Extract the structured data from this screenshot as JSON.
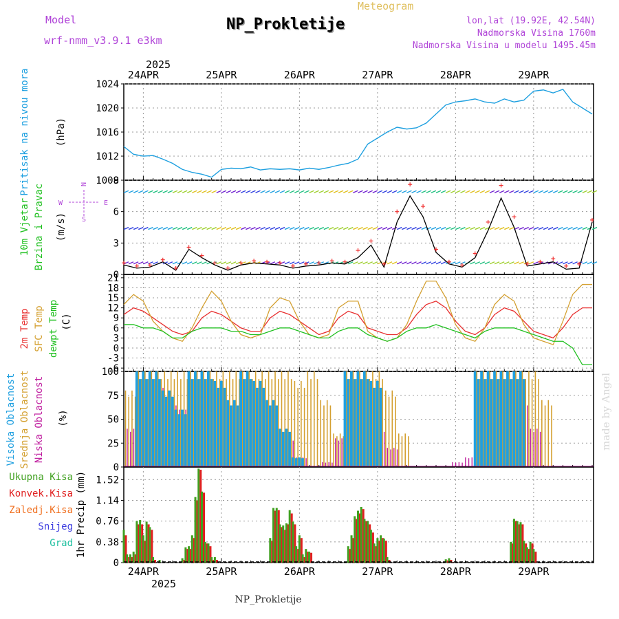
{
  "header": {
    "model_label": "Model",
    "model_name": "wrf-nmm_v3.9.1 e3km",
    "meteogram_label": "Meteogram",
    "station_title": "NP_Prokletije",
    "coords": "lon,lat (19.92E, 42.54N)",
    "elevation": "Nadmorska Visina 1760m",
    "model_elevation": "Nadmorska Visina u modelu 1495.45m",
    "watermark": "made by Angel",
    "footer_station": "NP_Prokletije"
  },
  "colors": {
    "model": "#b044d8",
    "meteogram": "#e0c060",
    "pressure": "#1ea0e0",
    "temp2m": "#e83030",
    "sfc": "#d4a030",
    "dewpt": "#20c020",
    "high_cloud": "#20a0e0",
    "mid_cloud": "#d4a030",
    "low_cloud": "#c020a0",
    "precip_total": "#40a020",
    "precip_conv": "#e02020"
  },
  "time_axis": {
    "year": "2025",
    "days": [
      "24APR",
      "25APR",
      "26APR",
      "27APR",
      "28APR",
      "29APR"
    ],
    "start_hour_offset": -6,
    "total_hours": 144
  },
  "chart_data": [
    {
      "type": "line",
      "panel": "pressure",
      "ylabel": "Pritisak na nivou mora",
      "unit": "(hPa)",
      "ylim": [
        1008,
        1024
      ],
      "yticks": [
        1008,
        1012,
        1016,
        1020,
        1024
      ],
      "x_hours": [
        0,
        3,
        6,
        9,
        12,
        15,
        18,
        21,
        24,
        27,
        30,
        33,
        36,
        39,
        42,
        45,
        48,
        51,
        54,
        57,
        60,
        63,
        66,
        69,
        72,
        75,
        78,
        81,
        84,
        87,
        90,
        93,
        96,
        99,
        102,
        105,
        108,
        111,
        114,
        117,
        120,
        123,
        126,
        129,
        132,
        135,
        138,
        141,
        144
      ],
      "values": [
        1013.6,
        1012.3,
        1012.0,
        1012.1,
        1011.5,
        1010.8,
        1009.8,
        1009.3,
        1009.0,
        1008.5,
        1009.8,
        1010.0,
        1009.9,
        1010.2,
        1009.7,
        1009.9,
        1009.8,
        1009.9,
        1009.7,
        1010.0,
        1009.8,
        1010.1,
        1010.5,
        1010.8,
        1011.5,
        1014.0,
        1015.0,
        1016.0,
        1016.8,
        1016.5,
        1016.7,
        1017.5,
        1019.0,
        1020.5,
        1021.0,
        1021.2,
        1021.5,
        1021.0,
        1020.8,
        1021.5,
        1021.0,
        1021.3,
        1022.8,
        1023.0,
        1022.5,
        1023.1,
        1021.0,
        1020.0,
        1019.0
      ]
    },
    {
      "type": "line",
      "panel": "wind",
      "ylabel": "10m Vjetar Brzina i Pravac",
      "unit": "(m/s)",
      "compass": [
        "N",
        "S",
        "W",
        "E"
      ],
      "ylim": [
        0,
        9
      ],
      "yticks": [
        0,
        3,
        6,
        9
      ],
      "x_hours": [
        0,
        4,
        8,
        12,
        16,
        20,
        24,
        28,
        32,
        36,
        40,
        44,
        48,
        52,
        56,
        60,
        64,
        68,
        72,
        76,
        80,
        84,
        88,
        92,
        96,
        100,
        104,
        108,
        112,
        116,
        120,
        124,
        128,
        132,
        136,
        140,
        144
      ],
      "series": [
        {
          "name": "Wind speed",
          "values": [
            0.9,
            0.6,
            0.7,
            1.2,
            0.4,
            2.4,
            1.6,
            0.9,
            0.4,
            0.9,
            1.1,
            1.0,
            0.9,
            0.6,
            0.8,
            0.9,
            1.1,
            1.0,
            1.6,
            2.8,
            0.7,
            5.0,
            7.5,
            5.5,
            2.1,
            1.0,
            0.7,
            1.6,
            4.2,
            7.3,
            4.5,
            0.8,
            1.0,
            1.2,
            0.5,
            0.6,
            5.0
          ]
        },
        {
          "name": "Gust",
          "values": [
            1.1,
            0.8,
            0.9,
            1.4,
            0.6,
            2.6,
            1.8,
            1.1,
            0.6,
            1.1,
            1.3,
            1.2,
            1.1,
            0.8,
            1.0,
            1.1,
            1.3,
            1.2,
            2.3,
            3.2,
            1.0,
            6.0,
            8.6,
            6.5,
            2.4,
            1.2,
            0.9,
            2.0,
            5.0,
            8.5,
            5.5,
            1.0,
            1.2,
            1.5,
            0.8,
            1.0,
            5.2
          ]
        }
      ]
    },
    {
      "type": "line",
      "panel": "temperature",
      "ylabels": [
        "2m Temp",
        "SFC Temp",
        "dewpt Temp"
      ],
      "unit": "(C)",
      "ylim": [
        -7,
        22
      ],
      "yticks": [
        -6,
        -3,
        0,
        3,
        6,
        9,
        12,
        15,
        18,
        21
      ],
      "x_hours": [
        0,
        3,
        6,
        9,
        12,
        15,
        18,
        21,
        24,
        27,
        30,
        33,
        36,
        39,
        42,
        45,
        48,
        51,
        54,
        57,
        60,
        63,
        66,
        69,
        72,
        75,
        78,
        81,
        84,
        87,
        90,
        93,
        96,
        99,
        102,
        105,
        108,
        111,
        114,
        117,
        120,
        123,
        126,
        129,
        132,
        135,
        138,
        141,
        144
      ],
      "series": [
        {
          "name": "2m Temp",
          "values": [
            10,
            12,
            11,
            9,
            7,
            5,
            4,
            5,
            9,
            11,
            10,
            8,
            6,
            5,
            5,
            9,
            11,
            10,
            8,
            6,
            4,
            5,
            9,
            11,
            10,
            6,
            5,
            4,
            4,
            6,
            10,
            13,
            14,
            12,
            8,
            5,
            4,
            6,
            10,
            12,
            11,
            8,
            5,
            4,
            3,
            6,
            10,
            12,
            12
          ]
        },
        {
          "name": "SFC Temp",
          "values": [
            13,
            16,
            14,
            8,
            5,
            3,
            2,
            6,
            12,
            17,
            14,
            8,
            4,
            3,
            4,
            12,
            15,
            14,
            8,
            4,
            3,
            4,
            12,
            14,
            14,
            5,
            3,
            2,
            3,
            7,
            14,
            20,
            20,
            15,
            7,
            3,
            2,
            6,
            13,
            16,
            14,
            7,
            3,
            2,
            1,
            8,
            16,
            19,
            19
          ]
        },
        {
          "name": "dewpt Temp",
          "values": [
            7,
            7,
            6,
            6,
            5,
            3,
            3,
            5,
            6,
            6,
            6,
            5,
            5,
            4,
            4,
            5,
            6,
            6,
            5,
            4,
            3,
            3,
            5,
            6,
            6,
            4,
            3,
            2,
            3,
            5,
            6,
            6,
            7,
            6,
            5,
            4,
            3,
            5,
            6,
            6,
            6,
            5,
            4,
            3,
            2,
            2,
            0,
            -5,
            -5
          ]
        }
      ]
    },
    {
      "type": "bar",
      "panel": "cloud",
      "ylabels": [
        "Visoka Oblacnost",
        "Srednja Oblacnost",
        "Niska Oblacnost"
      ],
      "unit": "(%)",
      "ylim": [
        0,
        100
      ],
      "yticks": [
        0,
        25,
        50,
        75,
        100
      ],
      "x_hours": [
        0,
        4,
        8,
        12,
        16,
        20,
        24,
        28,
        32,
        36,
        40,
        44,
        48,
        52,
        56,
        60,
        64,
        68,
        72,
        76,
        80,
        84,
        88,
        92,
        96,
        100,
        104,
        108,
        112,
        116,
        120,
        124,
        128,
        132,
        136,
        140
      ],
      "series": [
        {
          "name": "Visoka Oblacnost",
          "values": [
            0,
            100,
            100,
            80,
            60,
            100,
            100,
            90,
            70,
            100,
            90,
            70,
            40,
            10,
            0,
            0,
            0,
            100,
            100,
            90,
            0,
            0,
            0,
            0,
            0,
            0,
            0,
            100,
            100,
            100,
            100,
            0,
            0,
            0,
            0,
            0
          ]
        },
        {
          "name": "Srednja Oblacnost",
          "values": [
            80,
            100,
            100,
            100,
            100,
            100,
            100,
            100,
            100,
            100,
            100,
            100,
            100,
            90,
            100,
            70,
            35,
            100,
            100,
            100,
            80,
            35,
            0,
            0,
            0,
            0,
            0,
            100,
            100,
            100,
            100,
            100,
            70,
            0,
            0,
            0
          ]
        },
        {
          "name": "Niska Oblacnost",
          "values": [
            40,
            80,
            90,
            70,
            60,
            50,
            60,
            50,
            55,
            70,
            45,
            40,
            30,
            10,
            0,
            5,
            30,
            40,
            60,
            40,
            20,
            0,
            0,
            0,
            0,
            5,
            10,
            50,
            80,
            90,
            70,
            40,
            0,
            0,
            0,
            0
          ]
        }
      ]
    },
    {
      "type": "bar",
      "panel": "precip",
      "ylabel": "1hr Precip",
      "unit": "(mm)",
      "legend": [
        "Ukupna Kisa",
        "Konvek.Kisa",
        "Zaledj.Kisa",
        "Snijeg",
        "Grad"
      ],
      "ylim": [
        0,
        1.75
      ],
      "yticks": [
        0,
        0.38,
        0.76,
        1.14,
        1.52
      ],
      "x_hours": [
        0,
        1,
        2,
        3,
        4,
        5,
        6,
        7,
        8,
        9,
        10,
        11,
        12,
        13,
        14,
        15,
        16,
        17,
        18,
        19,
        20,
        21,
        22,
        23,
        24,
        25,
        26,
        27,
        28,
        29,
        30,
        31,
        32,
        33,
        34,
        35,
        36,
        37,
        38,
        39,
        40,
        41,
        42,
        43,
        44,
        45,
        46,
        47,
        48,
        49,
        50,
        51,
        52,
        53,
        54,
        55,
        56,
        57,
        58,
        59,
        60,
        61,
        62,
        63,
        64,
        65,
        66,
        67,
        68,
        69,
        70,
        71,
        72,
        73,
        74,
        75,
        76,
        77,
        78,
        79,
        80,
        81,
        82,
        83,
        84,
        85,
        86,
        87,
        88,
        89,
        90,
        91,
        92,
        93,
        94,
        95,
        96,
        97,
        98,
        99,
        100,
        101,
        102,
        103,
        104,
        105,
        106,
        107,
        108,
        109,
        110,
        111,
        112,
        113,
        114,
        115,
        116,
        117,
        118,
        119,
        120,
        121,
        122,
        123,
        124,
        125,
        126,
        127,
        128,
        129,
        130,
        131,
        132,
        133,
        134,
        135,
        136,
        137,
        138,
        139,
        140,
        141,
        142,
        143
      ],
      "series": [
        {
          "name": "Ukupna Kisa",
          "values": [
            0.6,
            0.15,
            0.15,
            0.2,
            0.76,
            0.78,
            0.5,
            0.75,
            0.65,
            0.1,
            0,
            0.05,
            0,
            0,
            0,
            0,
            0,
            0,
            0.08,
            0.28,
            0.3,
            0.5,
            1.2,
            1.72,
            1.3,
            0.38,
            0.35,
            0.1,
            0.1,
            0,
            0,
            0,
            0,
            0,
            0,
            0,
            0,
            0,
            0,
            0,
            0,
            0,
            0,
            0,
            0,
            0.45,
            1.0,
            1.0,
            0.7,
            0.68,
            0.72,
            0.96,
            0.75,
            0.3,
            0.5,
            0.15,
            0.25,
            0.2,
            0,
            0,
            0,
            0,
            0,
            0,
            0,
            0,
            0,
            0,
            0,
            0.3,
            0.5,
            0.85,
            0.95,
            1.02,
            0.8,
            0.76,
            0.6,
            0.35,
            0.45,
            0.5,
            0.44,
            0.1,
            0,
            0,
            0,
            0,
            0,
            0,
            0,
            0,
            0,
            0,
            0,
            0,
            0,
            0,
            0,
            0,
            0,
            0.06,
            0.08,
            0,
            0,
            0,
            0,
            0,
            0,
            0,
            0,
            0,
            0,
            0,
            0,
            0,
            0,
            0,
            0,
            0,
            0,
            0.38,
            0.8,
            0.76,
            0.74,
            0.4,
            0.28,
            0.38,
            0.25,
            0,
            0,
            0,
            0,
            0,
            0,
            0,
            0,
            0,
            0,
            0,
            0,
            0,
            0,
            0
          ]
        },
        {
          "name": "Konvek.Kisa",
          "values": [
            0.5,
            0.1,
            0.1,
            0.15,
            0.7,
            0.7,
            0.4,
            0.7,
            0.6,
            0.05,
            0,
            0,
            0,
            0,
            0,
            0,
            0,
            0,
            0.05,
            0.25,
            0.25,
            0.45,
            1.14,
            1.7,
            1.28,
            0.35,
            0.3,
            0.05,
            0.05,
            0,
            0,
            0,
            0,
            0,
            0,
            0,
            0,
            0,
            0,
            0,
            0,
            0,
            0,
            0,
            0,
            0.4,
            0.95,
            0.96,
            0.65,
            0.6,
            0.7,
            0.9,
            0.7,
            0.25,
            0.45,
            0.1,
            0.2,
            0.18,
            0,
            0,
            0,
            0,
            0,
            0,
            0,
            0,
            0,
            0,
            0,
            0.25,
            0.45,
            0.8,
            0.9,
            0.98,
            0.76,
            0.7,
            0.55,
            0.3,
            0.4,
            0.45,
            0.4,
            0.05,
            0,
            0,
            0,
            0,
            0,
            0,
            0,
            0,
            0,
            0,
            0,
            0,
            0,
            0,
            0,
            0,
            0,
            0.04,
            0.05,
            0,
            0,
            0,
            0,
            0,
            0,
            0,
            0,
            0,
            0,
            0,
            0,
            0,
            0,
            0,
            0,
            0,
            0,
            0.35,
            0.76,
            0.7,
            0.7,
            0.35,
            0.25,
            0.35,
            0.2,
            0,
            0,
            0,
            0,
            0,
            0,
            0,
            0,
            0,
            0,
            0,
            0,
            0,
            0,
            0
          ]
        }
      ]
    }
  ]
}
